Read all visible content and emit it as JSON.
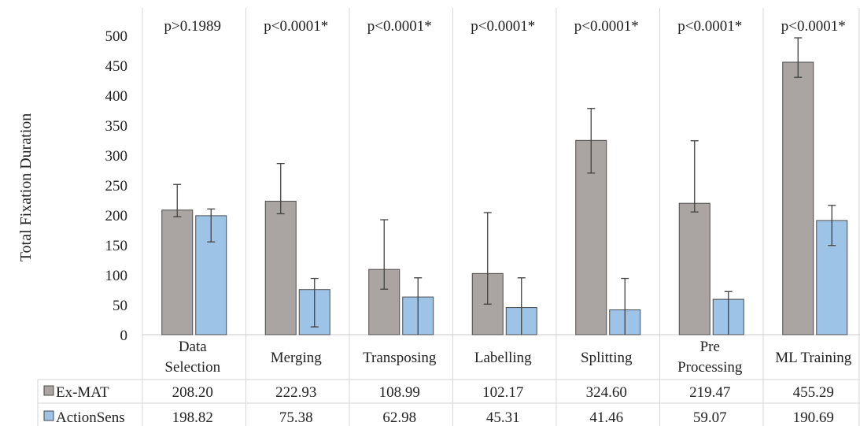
{
  "chart_data": {
    "type": "bar",
    "title": "",
    "xlabel": "",
    "ylabel": "Total Fixation Duration",
    "ylim": [
      0,
      500
    ],
    "yticks": [
      0,
      50,
      100,
      150,
      200,
      250,
      300,
      350,
      400,
      450,
      500
    ],
    "grid": "vertical separators between categories",
    "legend": "data table below the plot",
    "categories": [
      [
        "Data",
        "Selection"
      ],
      [
        "Merging"
      ],
      [
        "Transposing"
      ],
      [
        "Labelling"
      ],
      [
        "Splitting"
      ],
      [
        "Pre",
        "Processing"
      ],
      [
        "ML Training"
      ]
    ],
    "pvalues": [
      "p>0.1989",
      "p<0.0001*",
      "p<0.0001*",
      "p<0.0001*",
      "p<0.0001*",
      "p<0.0001*",
      "p<0.0001*"
    ],
    "series": [
      {
        "name": "Ex-MAT",
        "color": "#aaa5a3",
        "values": [
          208.2,
          222.93,
          108.99,
          102.17,
          324.6,
          219.47,
          455.29
        ],
        "labels": [
          "208.20",
          "222.93",
          "108.99",
          "102.17",
          "324.60",
          "219.47",
          "455.29"
        ],
        "err_low": [
          197,
          202,
          76,
          51,
          270,
          205,
          430
        ],
        "err_high": [
          251,
          286,
          192,
          204,
          378,
          324,
          496
        ]
      },
      {
        "name": "ActionSens",
        "color": "#9dc3e6",
        "values": [
          198.82,
          75.38,
          62.98,
          45.31,
          41.46,
          59.07,
          190.69
        ],
        "labels": [
          "198.82",
          "75.38",
          "62.98",
          "45.31",
          "41.46",
          "59.07",
          "190.69"
        ],
        "err_low": [
          155,
          13,
          0,
          0,
          0,
          0,
          149
        ],
        "err_high": [
          210,
          94,
          95,
          95,
          94,
          72,
          216
        ]
      }
    ]
  }
}
